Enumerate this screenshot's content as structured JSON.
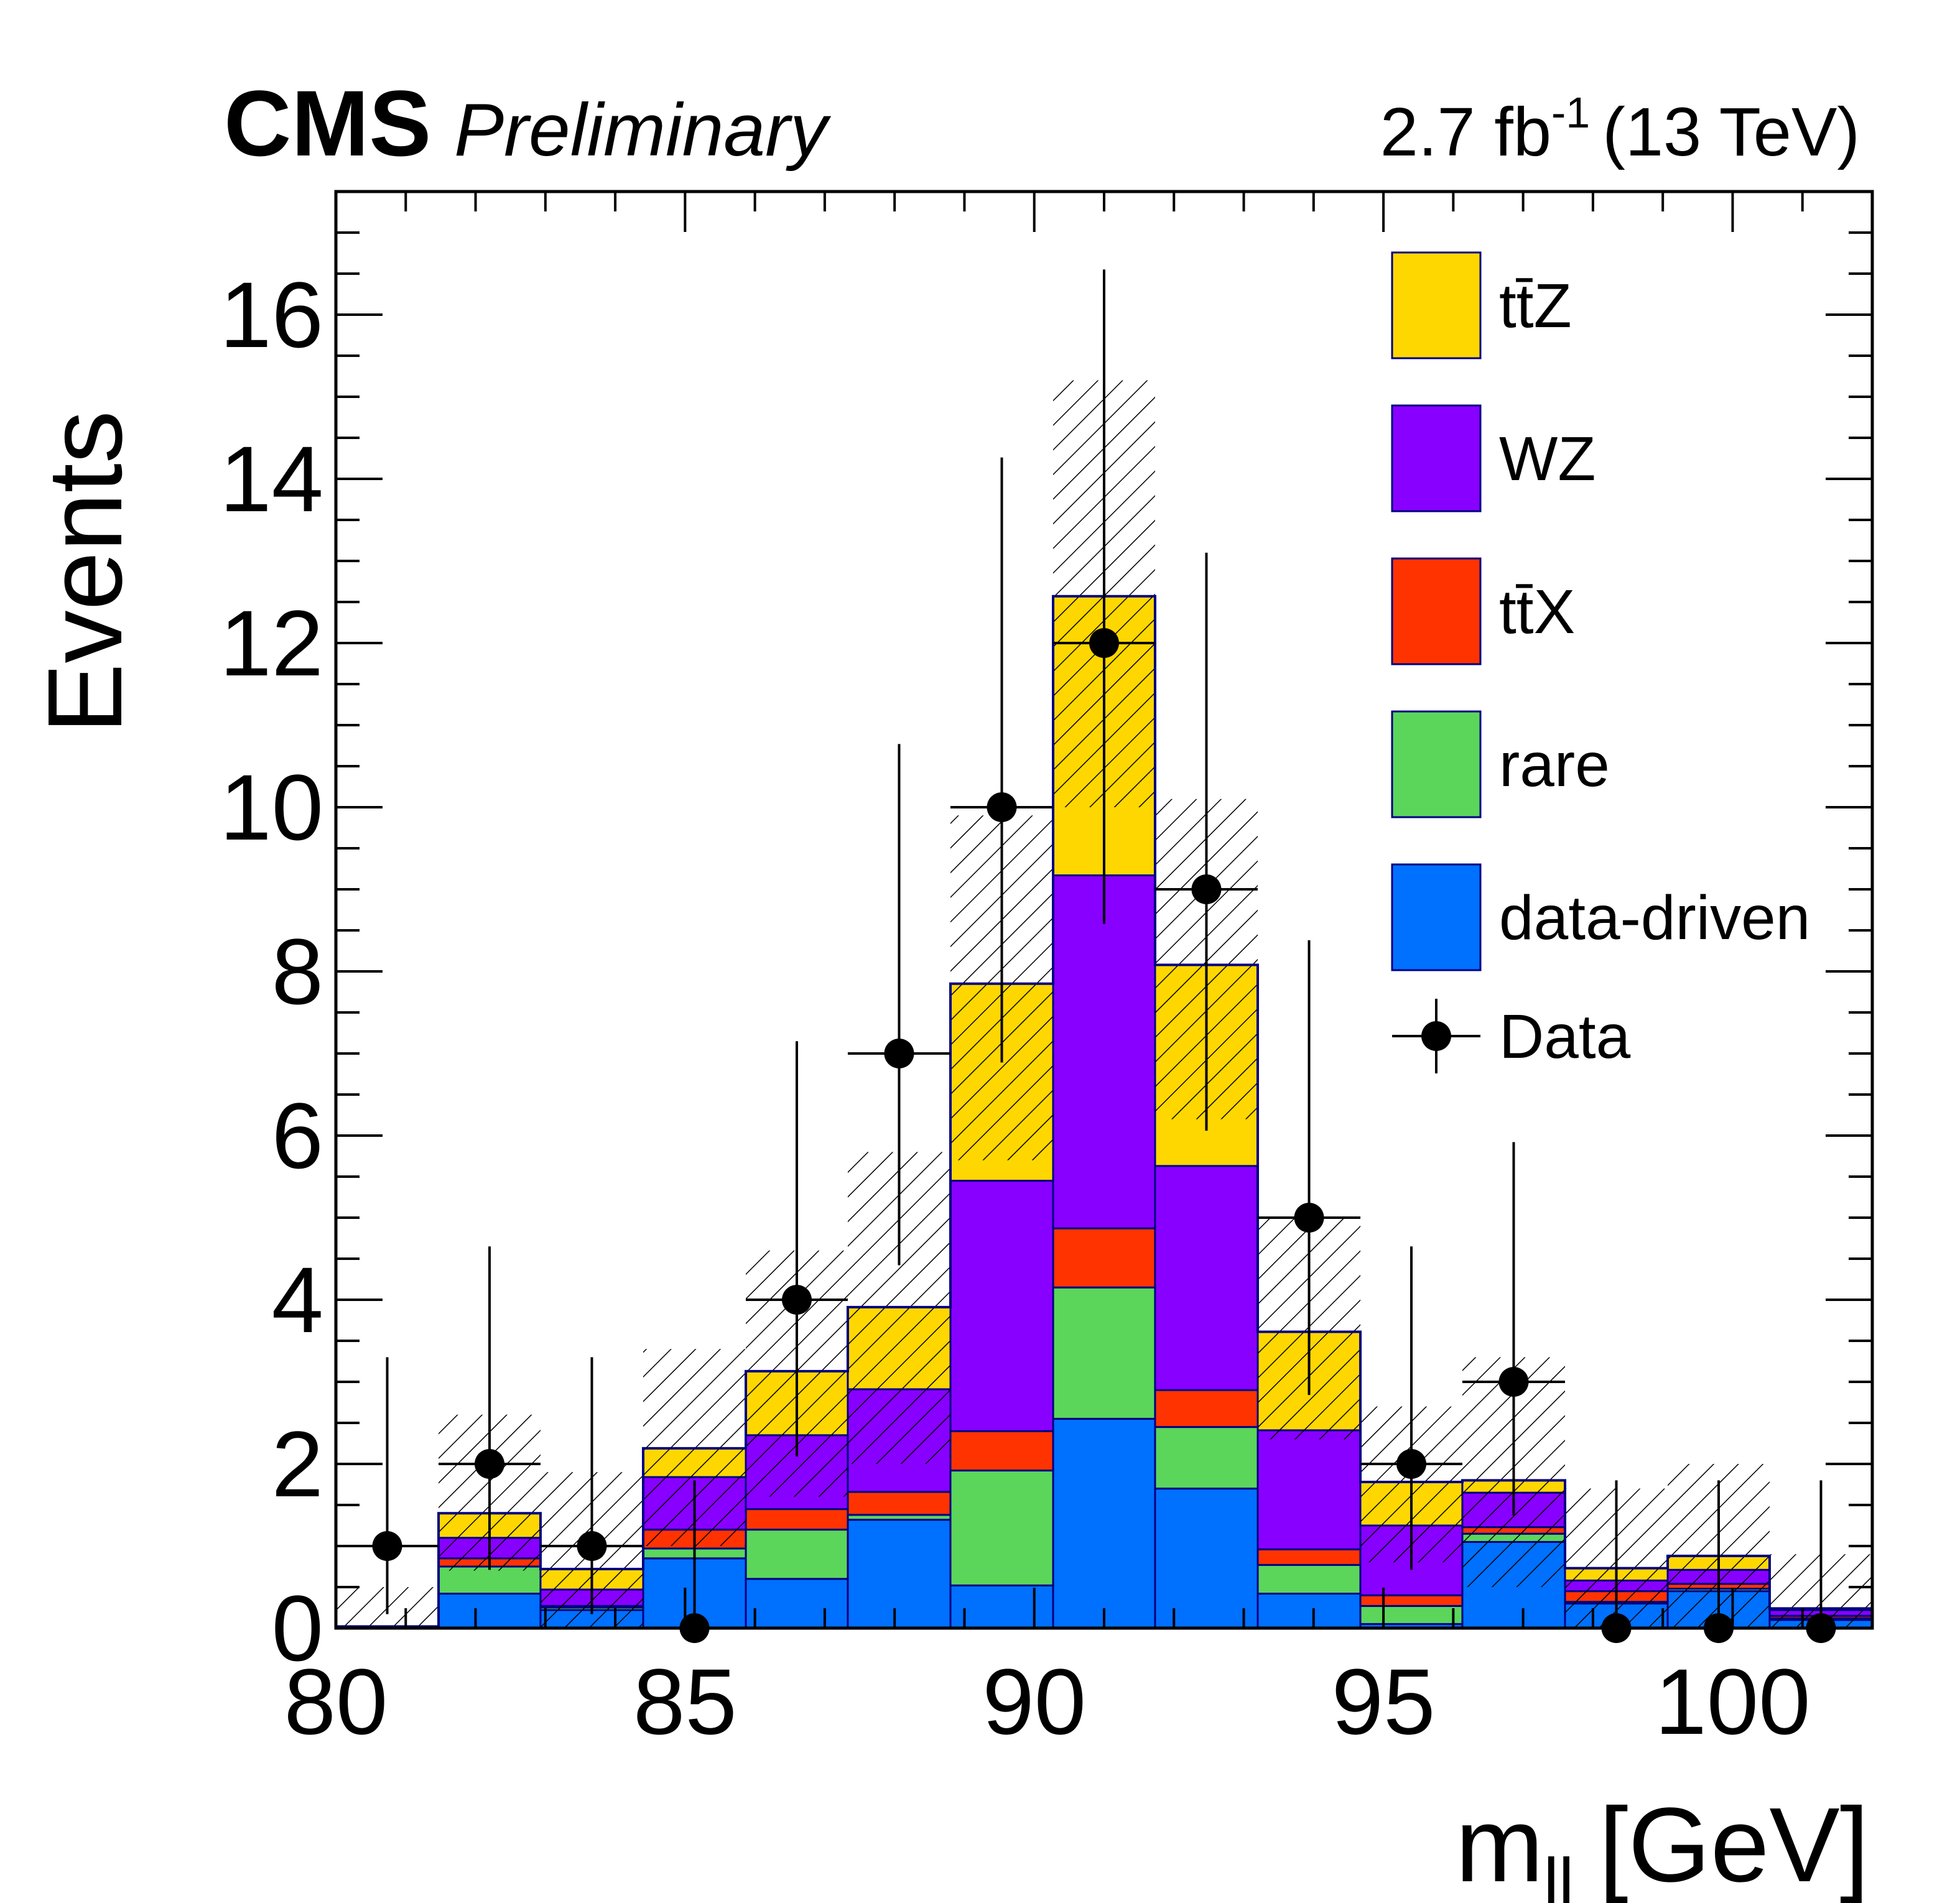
{
  "header": {
    "experiment": "CMS",
    "status": "Preliminary",
    "lumi": "2.7 fb",
    "lumi_exp": "-1",
    "energy": "(13 TeV)"
  },
  "chart_data": {
    "type": "bar",
    "stacked": true,
    "xlabel": "m",
    "xlabel_sub": "ll",
    "xlabel_unit": "[GeV]",
    "ylabel": "Events",
    "xlim": [
      80,
      102
    ],
    "ylim": [
      0,
      17.5
    ],
    "x_ticks": [
      80,
      85,
      90,
      95,
      100
    ],
    "y_ticks": [
      0,
      2,
      4,
      6,
      8,
      10,
      12,
      14,
      16
    ],
    "bin_edges": [
      80,
      81.47,
      82.93,
      84.4,
      85.87,
      87.33,
      88.8,
      90.27,
      91.73,
      93.2,
      94.67,
      96.13,
      97.6,
      99.07,
      100.53,
      102
    ],
    "series": [
      {
        "name": "data-driven",
        "color": "#0070ff",
        "values": [
          0.02,
          0.42,
          0.22,
          0.85,
          0.6,
          1.32,
          0.52,
          2.55,
          1.7,
          0.42,
          0.05,
          1.05,
          0.3,
          0.45,
          0.1
        ]
      },
      {
        "name": "rare",
        "color": "#5bd65b",
        "values": [
          0.0,
          0.33,
          0.03,
          0.12,
          0.6,
          0.06,
          1.4,
          1.6,
          0.75,
          0.35,
          0.22,
          0.1,
          0.02,
          0.03,
          0.02
        ]
      },
      {
        "name": "tt̄X",
        "color": "#ff3300",
        "values": [
          0.0,
          0.1,
          0.02,
          0.23,
          0.25,
          0.28,
          0.48,
          0.72,
          0.45,
          0.19,
          0.13,
          0.08,
          0.13,
          0.06,
          0.03
        ]
      },
      {
        "name": "WZ",
        "color": "#8800ff",
        "values": [
          0.0,
          0.25,
          0.2,
          0.64,
          0.9,
          1.25,
          3.05,
          4.3,
          2.73,
          1.45,
          0.85,
          0.42,
          0.13,
          0.17,
          0.07
        ]
      },
      {
        "name": "tt̄Z",
        "color": "#ffd700",
        "values": [
          0.0,
          0.3,
          0.25,
          0.35,
          0.78,
          1.0,
          2.4,
          3.4,
          2.45,
          1.2,
          0.53,
          0.15,
          0.15,
          0.17,
          0.02
        ]
      }
    ],
    "uncertainty_band": [
      {
        "low": 0.0,
        "high": 0.5
      },
      {
        "low": 0.7,
        "high": 2.6
      },
      {
        "low": 0.0,
        "high": 1.9
      },
      {
        "low": 1.0,
        "high": 3.4
      },
      {
        "low": 1.6,
        "high": 4.6
      },
      {
        "low": 2.0,
        "high": 5.8
      },
      {
        "low": 5.7,
        "high": 9.9
      },
      {
        "low": 10.0,
        "high": 15.2
      },
      {
        "low": 6.2,
        "high": 10.1
      },
      {
        "low": 2.3,
        "high": 5.0
      },
      {
        "low": 0.8,
        "high": 2.7
      },
      {
        "low": 0.5,
        "high": 3.3
      },
      {
        "low": 0.0,
        "high": 1.7
      },
      {
        "low": 0.0,
        "high": 2.0
      },
      {
        "low": 0.0,
        "high": 0.9
      }
    ],
    "data_points": {
      "name": "Data",
      "values": [
        1,
        2,
        1,
        0,
        4,
        7,
        10,
        12,
        9,
        5,
        2,
        3,
        0,
        0,
        0
      ],
      "err_up": [
        2.3,
        2.65,
        2.3,
        1.8,
        3.15,
        3.77,
        4.26,
        4.55,
        4.1,
        3.38,
        2.65,
        2.92,
        1.8,
        1.8,
        1.8
      ],
      "err_down": [
        0.83,
        1.29,
        0.83,
        0.0,
        1.91,
        2.58,
        3.11,
        3.42,
        2.94,
        2.16,
        1.29,
        1.63,
        0.0,
        0.0,
        0.0
      ]
    },
    "legend": [
      {
        "label": "tt̄Z",
        "kind": "box",
        "color": "#ffd700"
      },
      {
        "label": "WZ",
        "kind": "box",
        "color": "#8800ff"
      },
      {
        "label": "tt̄X",
        "kind": "box",
        "color": "#ff3300"
      },
      {
        "label": "rare",
        "kind": "box",
        "color": "#5bd65b"
      },
      {
        "label": "data-driven",
        "kind": "box",
        "color": "#0070ff"
      },
      {
        "label": "Data",
        "kind": "marker",
        "color": "#000000"
      }
    ],
    "legend_position": "top-right",
    "grid": false
  }
}
